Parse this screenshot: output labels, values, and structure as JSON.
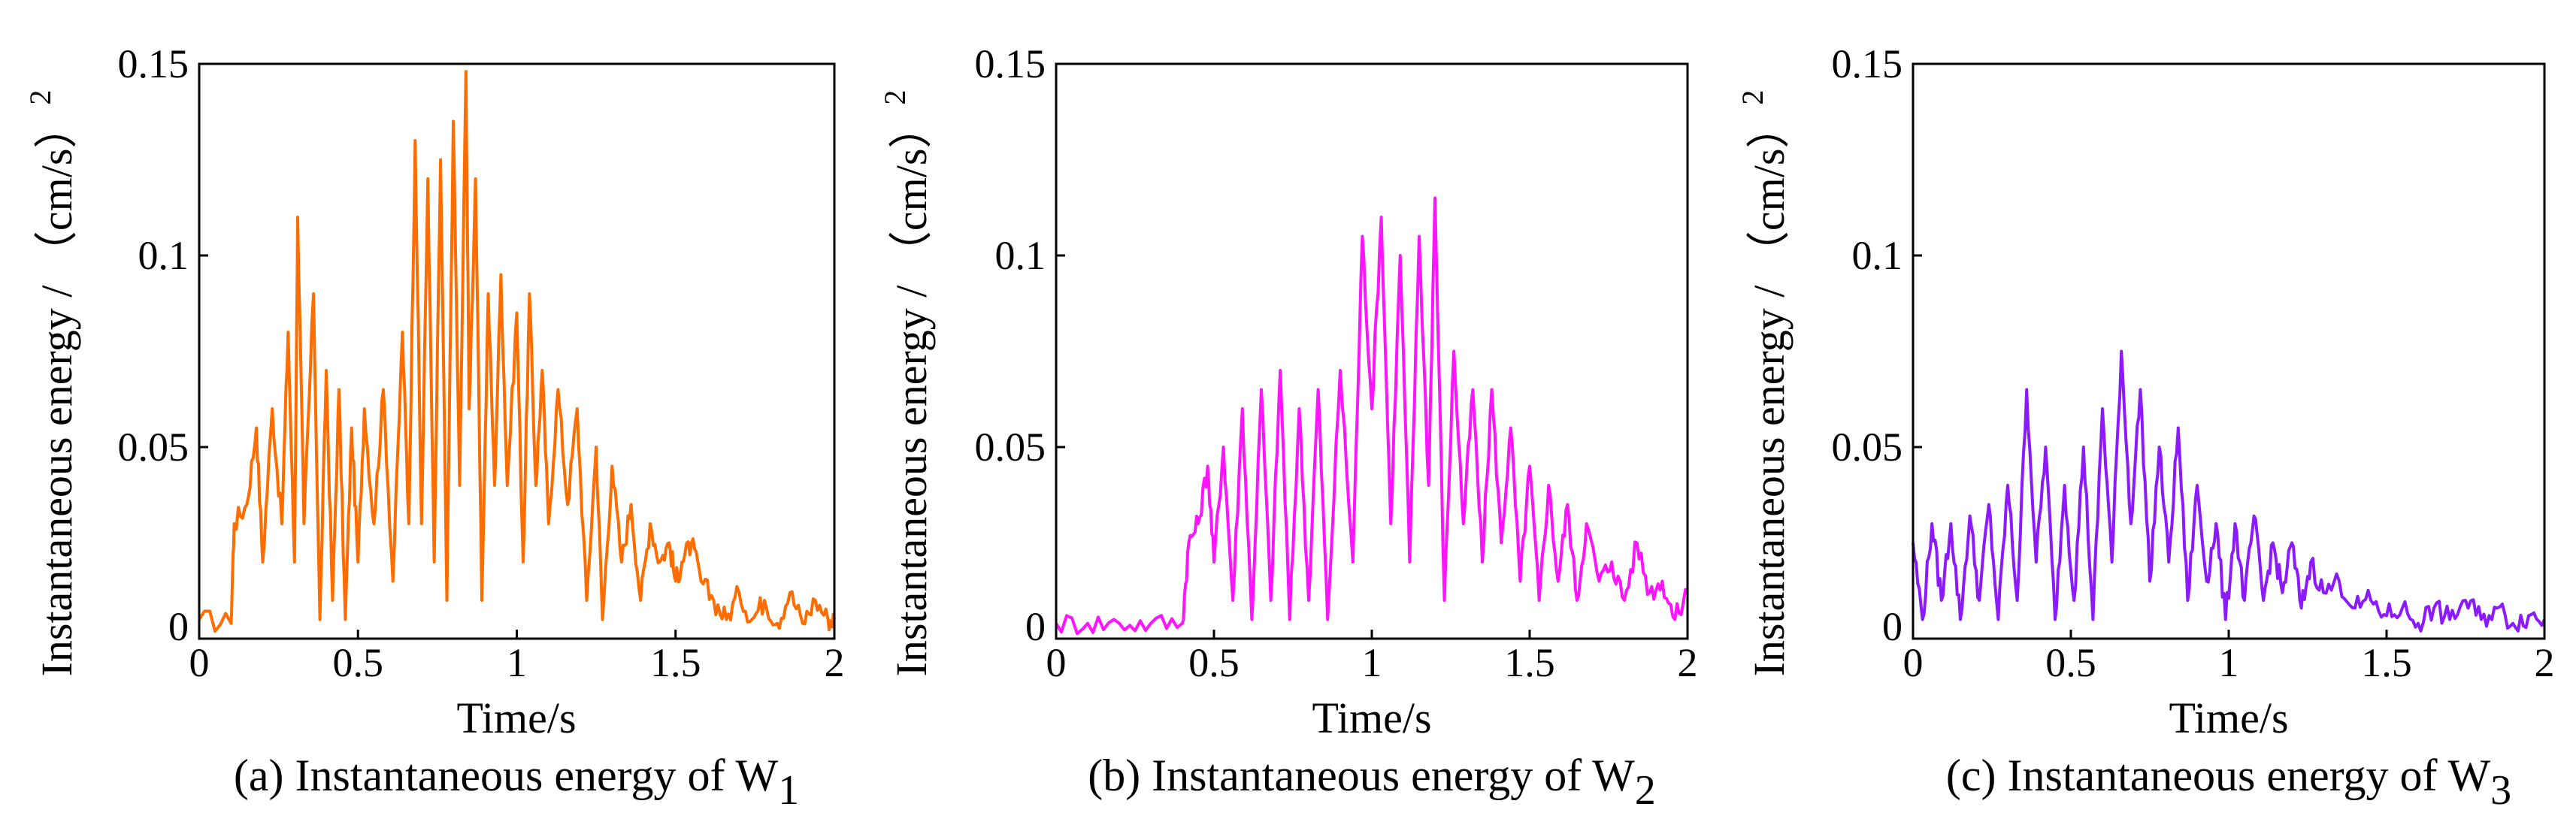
{
  "chart_data": [
    {
      "type": "line",
      "caption": "(a) Instantaneous energy of W",
      "caption_subscript": "1",
      "xlabel": "Time/s",
      "ylabel": "Instantaneous energy / （cm/s）",
      "ylabel_superscript": "2",
      "xlim": [
        0,
        2
      ],
      "ylim": [
        0,
        0.15
      ],
      "xticks": [
        "0",
        "0.5",
        "1",
        "1.5",
        "2"
      ],
      "yticks": [
        "0",
        "0.05",
        "0.1",
        "0.15"
      ],
      "color": "#ff6d00",
      "series": [
        {
          "name": "W1",
          "x": [
            0,
            0.1,
            0.11,
            0.15,
            0.18,
            0.2,
            0.23,
            0.26,
            0.28,
            0.3,
            0.31,
            0.33,
            0.36,
            0.38,
            0.4,
            0.42,
            0.44,
            0.46,
            0.48,
            0.5,
            0.52,
            0.55,
            0.58,
            0.61,
            0.64,
            0.66,
            0.68,
            0.7,
            0.72,
            0.74,
            0.76,
            0.78,
            0.8,
            0.82,
            0.84,
            0.85,
            0.87,
            0.89,
            0.91,
            0.93,
            0.95,
            0.97,
            1.0,
            1.02,
            1.04,
            1.06,
            1.08,
            1.1,
            1.13,
            1.16,
            1.19,
            1.22,
            1.25,
            1.27,
            1.3,
            1.33,
            1.36,
            1.39,
            1.42,
            1.45,
            1.48,
            1.5,
            1.52,
            1.55,
            1.58,
            1.62,
            1.66,
            1.7,
            1.74,
            1.78,
            1.82,
            1.86,
            1.9,
            1.94,
            1.98,
            2.0
          ],
          "y": [
            0.005,
            0.004,
            0.03,
            0.035,
            0.055,
            0.02,
            0.06,
            0.03,
            0.08,
            0.02,
            0.11,
            0.03,
            0.09,
            0.005,
            0.07,
            0.01,
            0.065,
            0.005,
            0.055,
            0.02,
            0.06,
            0.03,
            0.065,
            0.015,
            0.08,
            0.03,
            0.13,
            0.03,
            0.12,
            0.02,
            0.125,
            0.01,
            0.135,
            0.04,
            0.148,
            0.06,
            0.12,
            0.01,
            0.09,
            0.04,
            0.095,
            0.04,
            0.085,
            0.02,
            0.09,
            0.04,
            0.07,
            0.03,
            0.065,
            0.035,
            0.06,
            0.01,
            0.05,
            0.005,
            0.045,
            0.02,
            0.035,
            0.01,
            0.03,
            0.02,
            0.025,
            0.015,
            0.02,
            0.025,
            0.015,
            0.01,
            0.005,
            0.012,
            0.005,
            0.01,
            0.004,
            0.012,
            0.004,
            0.01,
            0.005,
            0.005
          ]
        }
      ]
    },
    {
      "type": "line",
      "caption": "(b) Instantaneous energy of W",
      "caption_subscript": "2",
      "xlabel": "Time/s",
      "ylabel": "Instantaneous energy / （cm/s）",
      "ylabel_superscript": "2",
      "xlim": [
        0,
        2
      ],
      "ylim": [
        0,
        0.15
      ],
      "xticks": [
        "0",
        "0.5",
        "1",
        "1.5",
        "2"
      ],
      "yticks": [
        "0",
        "0.05",
        "0.1",
        "0.15"
      ],
      "color": "#ff14ff",
      "series": [
        {
          "name": "W2",
          "x": [
            0,
            0.1,
            0.2,
            0.3,
            0.4,
            0.42,
            0.45,
            0.48,
            0.5,
            0.53,
            0.56,
            0.59,
            0.62,
            0.65,
            0.68,
            0.71,
            0.74,
            0.77,
            0.8,
            0.83,
            0.86,
            0.9,
            0.94,
            0.97,
            1.0,
            1.03,
            1.06,
            1.09,
            1.12,
            1.15,
            1.18,
            1.2,
            1.23,
            1.26,
            1.29,
            1.32,
            1.35,
            1.38,
            1.41,
            1.44,
            1.47,
            1.5,
            1.53,
            1.56,
            1.59,
            1.62,
            1.65,
            1.68,
            1.72,
            1.76,
            1.8,
            1.84,
            1.88,
            1.92,
            1.96,
            2.0
          ],
          "y": [
            0.004,
            0.004,
            0.004,
            0.004,
            0.004,
            0.025,
            0.03,
            0.045,
            0.02,
            0.05,
            0.01,
            0.06,
            0.005,
            0.065,
            0.01,
            0.07,
            0.005,
            0.06,
            0.01,
            0.065,
            0.005,
            0.07,
            0.02,
            0.105,
            0.06,
            0.11,
            0.03,
            0.1,
            0.02,
            0.105,
            0.04,
            0.115,
            0.01,
            0.075,
            0.03,
            0.065,
            0.02,
            0.065,
            0.025,
            0.055,
            0.015,
            0.045,
            0.01,
            0.04,
            0.015,
            0.035,
            0.01,
            0.03,
            0.015,
            0.02,
            0.01,
            0.025,
            0.012,
            0.015,
            0.005,
            0.012
          ]
        }
      ]
    },
    {
      "type": "line",
      "caption": "(c) Instantaneous energy of W",
      "caption_subscript": "3",
      "xlabel": "Time/s",
      "ylabel": "Instantaneous energy / （cm/s）",
      "ylabel_superscript": "2",
      "xlim": [
        0,
        2
      ],
      "ylim": [
        0,
        0.15
      ],
      "xticks": [
        "0",
        "0.5",
        "1",
        "1.5",
        "2"
      ],
      "yticks": [
        "0",
        "0.05",
        "0.1",
        "0.15"
      ],
      "color": "#8c1aff",
      "series": [
        {
          "name": "W3",
          "x": [
            0,
            0.03,
            0.06,
            0.09,
            0.12,
            0.15,
            0.18,
            0.21,
            0.24,
            0.27,
            0.3,
            0.33,
            0.36,
            0.39,
            0.42,
            0.45,
            0.48,
            0.51,
            0.54,
            0.57,
            0.6,
            0.63,
            0.66,
            0.69,
            0.72,
            0.75,
            0.78,
            0.81,
            0.84,
            0.87,
            0.9,
            0.93,
            0.96,
            0.99,
            1.02,
            1.05,
            1.08,
            1.11,
            1.14,
            1.17,
            1.2,
            1.23,
            1.26,
            1.3,
            1.35,
            1.4,
            1.45,
            1.5,
            1.55,
            1.6,
            1.65,
            1.7,
            1.75,
            1.8,
            1.85,
            1.9,
            1.95,
            2.0
          ],
          "y": [
            0.025,
            0.005,
            0.03,
            0.01,
            0.03,
            0.005,
            0.032,
            0.01,
            0.035,
            0.005,
            0.04,
            0.01,
            0.065,
            0.02,
            0.05,
            0.005,
            0.04,
            0.01,
            0.05,
            0.005,
            0.06,
            0.02,
            0.075,
            0.03,
            0.065,
            0.015,
            0.05,
            0.02,
            0.055,
            0.01,
            0.04,
            0.015,
            0.03,
            0.005,
            0.03,
            0.01,
            0.032,
            0.01,
            0.025,
            0.012,
            0.025,
            0.008,
            0.02,
            0.012,
            0.015,
            0.008,
            0.01,
            0.006,
            0.008,
            0.004,
            0.008,
            0.005,
            0.01,
            0.005,
            0.008,
            0.004,
            0.006,
            0.005
          ]
        }
      ]
    }
  ]
}
